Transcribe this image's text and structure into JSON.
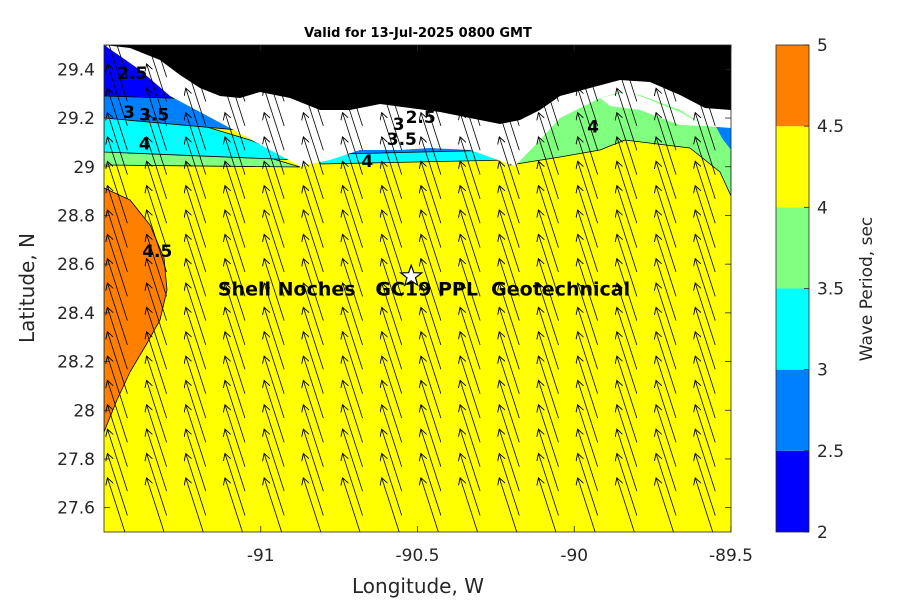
{
  "chart_data": {
    "type": "heatmap",
    "title": "Valid for 13-Jul-2025 0800 GMT",
    "xlabel": "Longitude, W",
    "ylabel": "Latitude, N",
    "xlim": [
      -91.5,
      -89.5
    ],
    "ylim": [
      27.5,
      29.5
    ],
    "x_ticks": [
      {
        "value": -91,
        "label": "-91"
      },
      {
        "value": -90.5,
        "label": "-90.5"
      },
      {
        "value": -90,
        "label": "-90"
      },
      {
        "value": -89.5,
        "label": "-89.5"
      }
    ],
    "y_ticks": [
      {
        "value": 27.6,
        "label": "27.6"
      },
      {
        "value": 27.8,
        "label": "27.8"
      },
      {
        "value": 28,
        "label": "28"
      },
      {
        "value": 28.2,
        "label": "28.2"
      },
      {
        "value": 28.4,
        "label": "28.4"
      },
      {
        "value": 28.6,
        "label": "28.6"
      },
      {
        "value": 28.8,
        "label": "28.8"
      },
      {
        "value": 29,
        "label": "29"
      },
      {
        "value": 29.2,
        "label": "29.2"
      },
      {
        "value": 29.4,
        "label": "29.4"
      }
    ],
    "colorbar": {
      "label": "Wave Period, sec",
      "range": [
        2,
        5
      ],
      "ticks": [
        "2",
        "2.5",
        "3",
        "3.5",
        "4",
        "4.5",
        "5"
      ],
      "bands": [
        {
          "from": 2,
          "to": 2.5,
          "color": "#0000ff"
        },
        {
          "from": 2.5,
          "to": 3,
          "color": "#0080ff"
        },
        {
          "from": 3,
          "to": 3.5,
          "color": "#00ffff"
        },
        {
          "from": 3.5,
          "to": 4,
          "color": "#80ff80"
        },
        {
          "from": 4,
          "to": 4.5,
          "color": "#ffff00"
        },
        {
          "from": 4.5,
          "to": 5,
          "color": "#ff8000"
        }
      ]
    },
    "contour_labels": [
      {
        "text": "2.5",
        "lon": -91.41,
        "lat": 29.36
      },
      {
        "text": "3",
        "lon": -91.42,
        "lat": 29.2
      },
      {
        "text": "3.5",
        "lon": -91.34,
        "lat": 29.19
      },
      {
        "text": "4",
        "lon": -91.37,
        "lat": 29.07
      },
      {
        "text": "4.5",
        "lon": -91.33,
        "lat": 28.63
      },
      {
        "text": "2.5",
        "lon": -90.49,
        "lat": 29.18
      },
      {
        "text": "3",
        "lon": -90.56,
        "lat": 29.15
      },
      {
        "text": "3.5",
        "lon": -90.55,
        "lat": 29.09
      },
      {
        "text": "4",
        "lon": -90.66,
        "lat": 29.0
      },
      {
        "text": "4",
        "lon": -89.94,
        "lat": 29.14
      }
    ],
    "site": {
      "name": "Shell Noches   GC19 PPL  Geotechnical",
      "lon": -90.52,
      "lat": 28.55,
      "marker": "star"
    },
    "grid": false,
    "legend": "colorbar-right",
    "vectors": {
      "direction": "toward north-northwest",
      "spacing_deg": [
        0.125,
        0.1
      ]
    }
  }
}
